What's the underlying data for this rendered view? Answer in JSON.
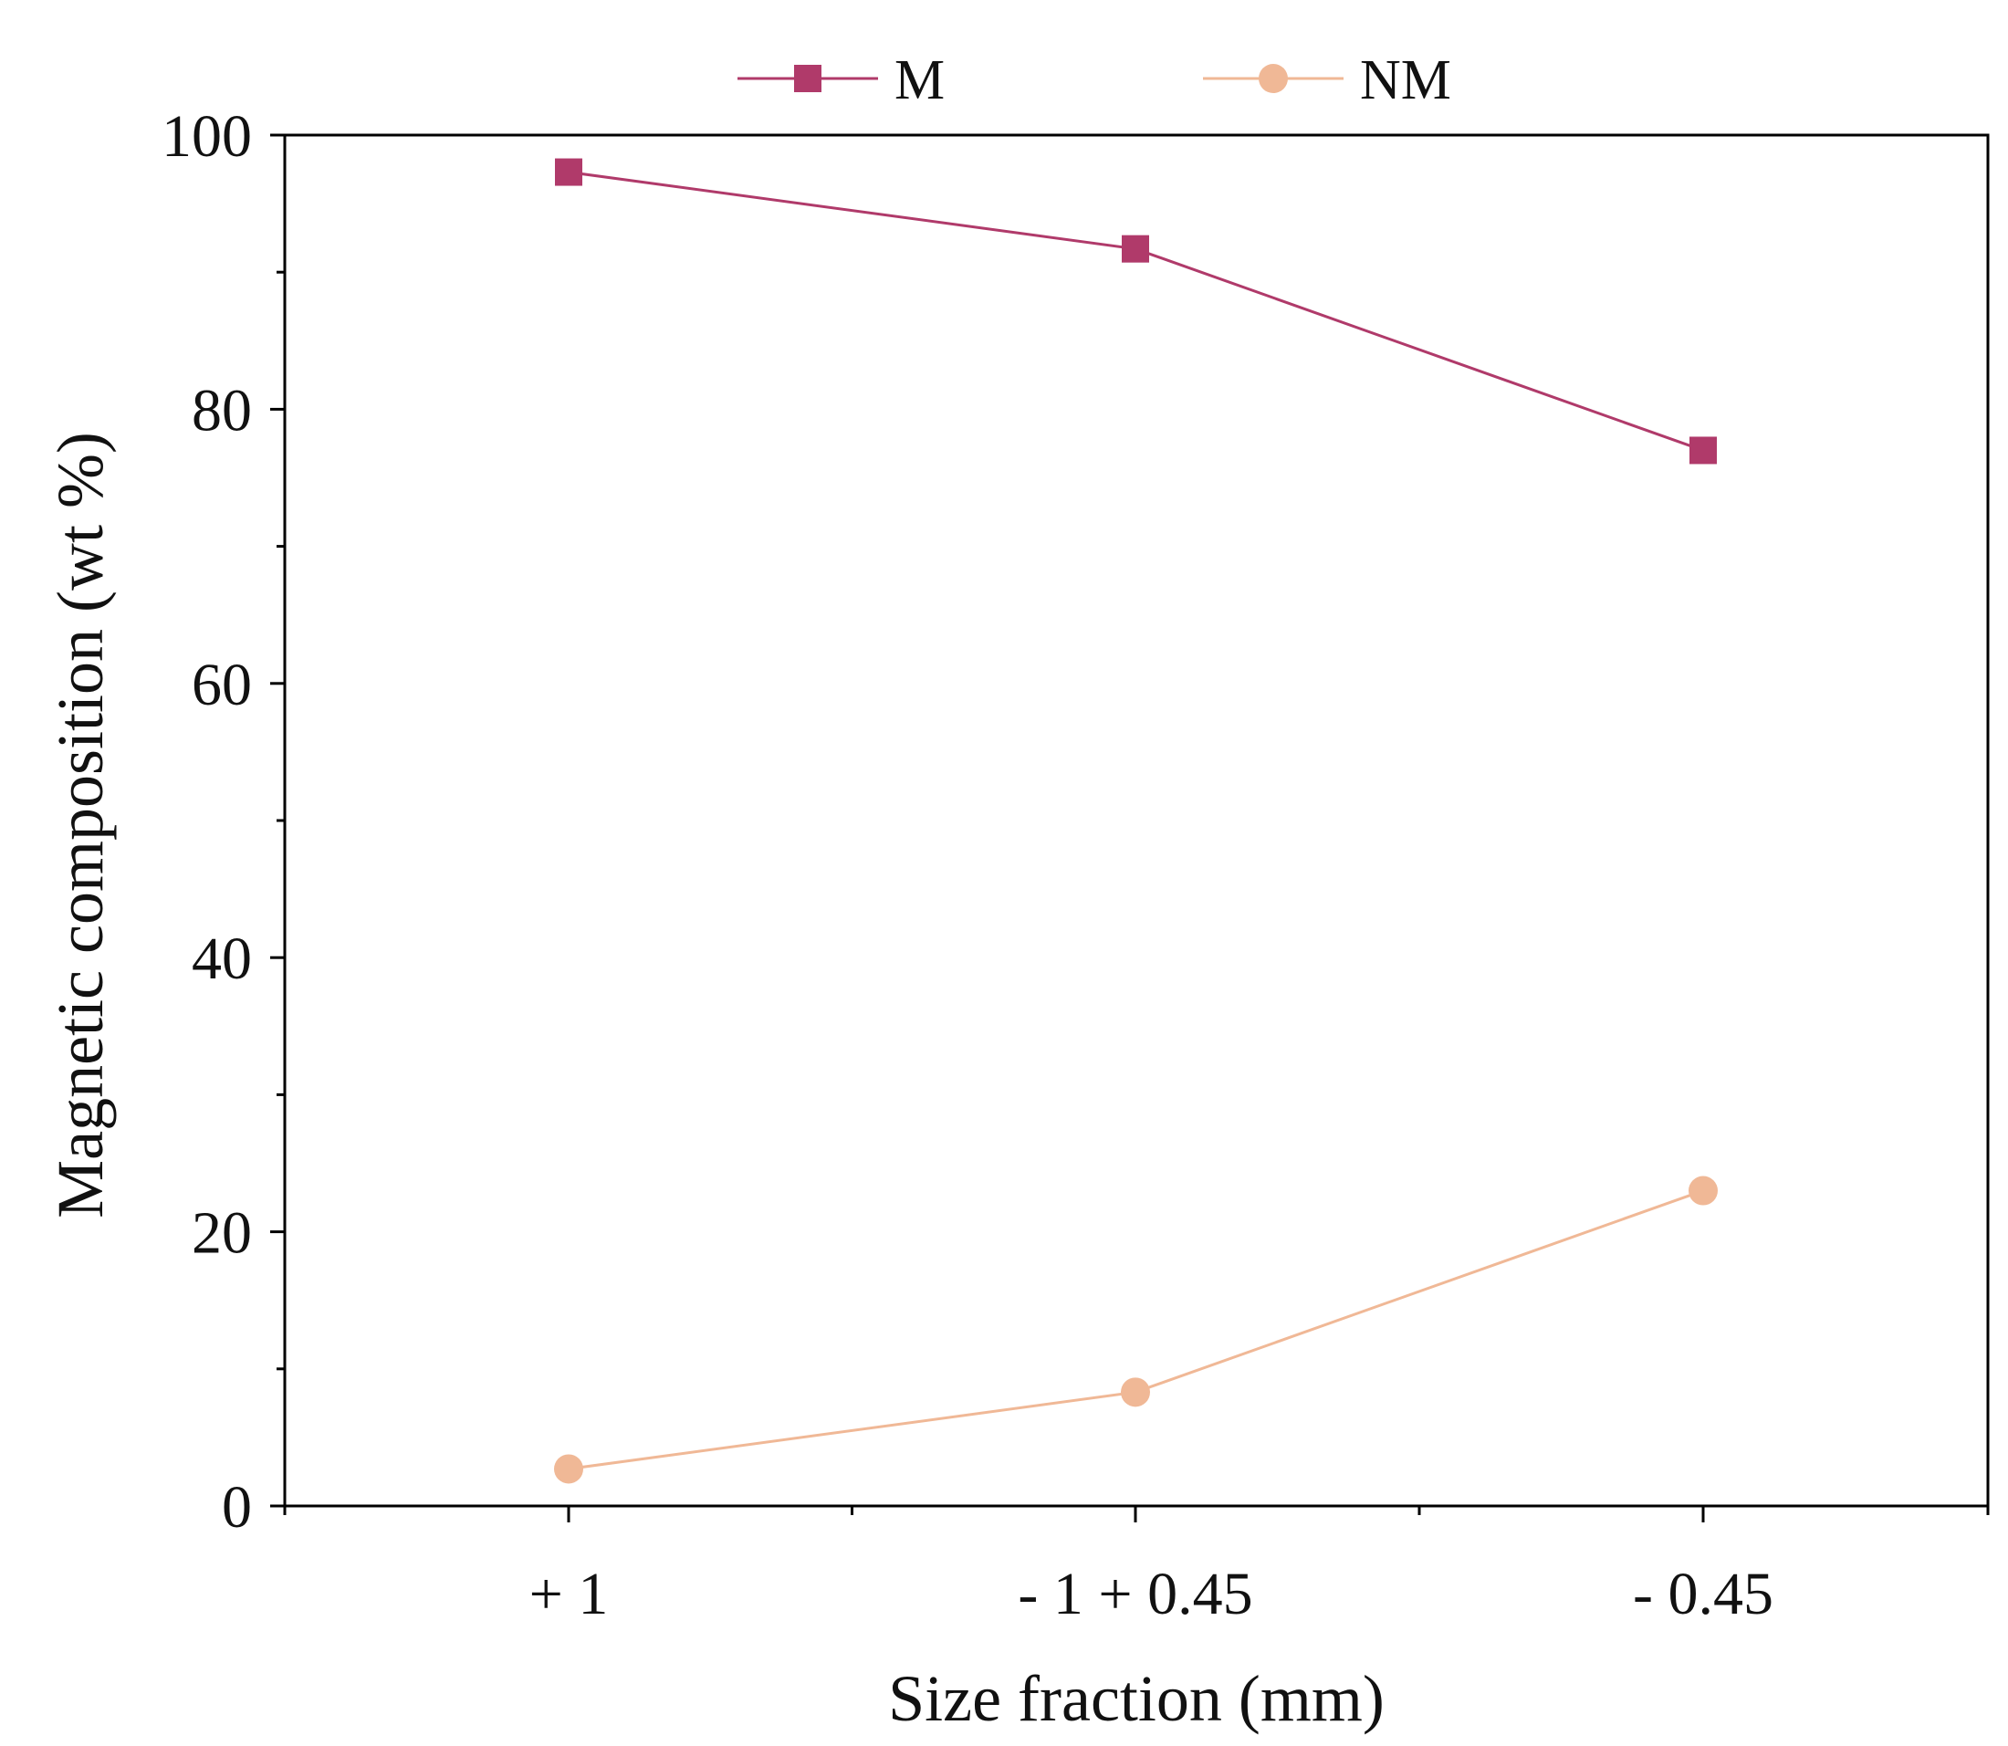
{
  "chart_data": {
    "type": "line",
    "title": "",
    "xlabel": "Size fraction (mm)",
    "ylabel": "Magnetic composition (wt %)",
    "categories": [
      "+ 1",
      "- 1 + 0.45",
      "- 0.45"
    ],
    "ylim": [
      0,
      100
    ],
    "yticks": [
      0,
      20,
      40,
      60,
      80,
      100
    ],
    "grid": false,
    "legend_position": "top-center",
    "series": [
      {
        "name": "M",
        "marker": "square",
        "color": "#b03a6a",
        "values": [
          97.3,
          91.7,
          77.0
        ]
      },
      {
        "name": "NM",
        "marker": "circle",
        "color": "#f0b896",
        "values": [
          2.7,
          8.3,
          23.0
        ]
      }
    ]
  }
}
